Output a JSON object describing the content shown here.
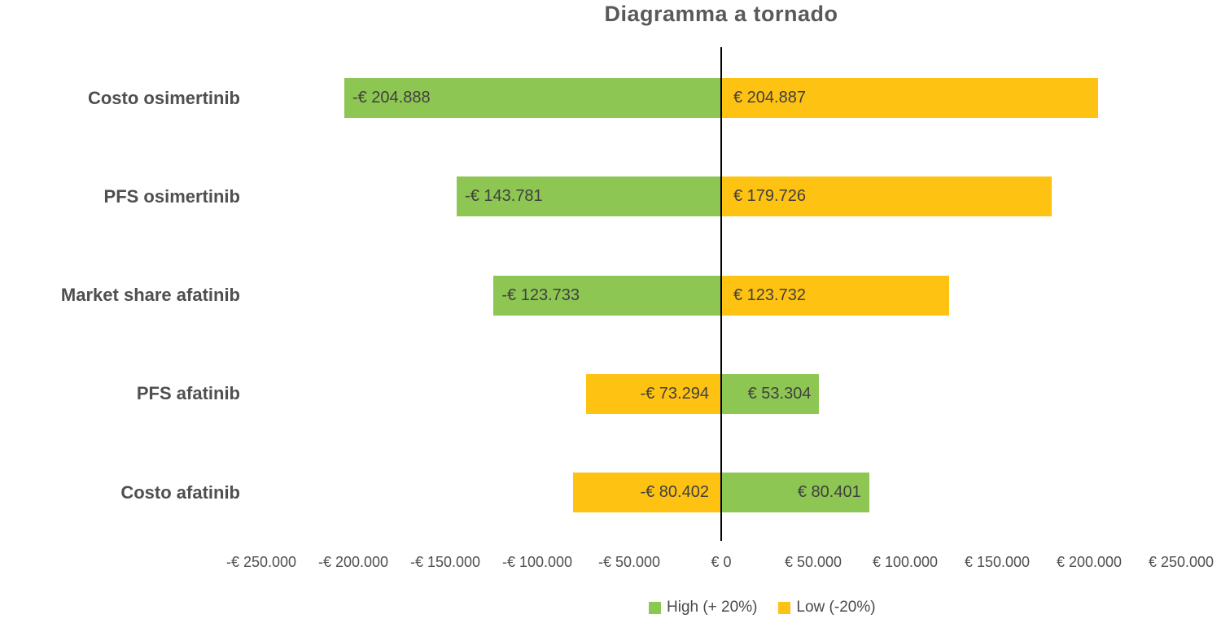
{
  "title": "Diagramma a tornado",
  "colors": {
    "high_green": "#8DC652",
    "low_yellow": "#FEC212",
    "axis_line": "#000000",
    "text": "#4A4A4A",
    "bar_label_text": "#404040",
    "background": "#FFFFFF"
  },
  "chart_data": {
    "type": "bar",
    "orientation": "horizontal-tornado",
    "title": "Diagramma a tornado",
    "categories": [
      "Costo osimertinib",
      "PFS osimertinib",
      "Market share afatinib",
      "PFS afatinib",
      "Costo afatinib"
    ],
    "series": [
      {
        "name": "High (+ 20%)",
        "color": "#8DC652",
        "label_anchor": "inside-end",
        "values": [
          -204888,
          -143781,
          -123733,
          53304,
          80401
        ],
        "labels": [
          "-€ 204.888",
          "-€ 143.781",
          "-€ 123.733",
          "€ 53.304",
          "€ 80.401"
        ]
      },
      {
        "name": "Low (-20%)",
        "color": "#FEC212",
        "label_anchor": "inside-base",
        "values": [
          204887,
          179726,
          123732,
          -73294,
          -80402
        ],
        "labels": [
          "€ 204.887",
          "€ 179.726",
          "€ 123.732",
          "-€ 73.294",
          "-€ 80.402"
        ]
      }
    ],
    "xlim": [
      -250000,
      250000
    ],
    "x_tick_values": [
      -250000,
      -200000,
      -150000,
      -100000,
      -50000,
      0,
      50000,
      100000,
      150000,
      200000,
      250000
    ],
    "x_tick_labels": [
      "-€ 250.000",
      "-€ 200.000",
      "-€ 150.000",
      "-€ 100.000",
      "-€ 50.000",
      "€ 0",
      "€ 50.000",
      "€ 100.000",
      "€ 150.000",
      "€ 200.000",
      "€ 250.000"
    ],
    "grid": false,
    "legend_position": "bottom"
  }
}
